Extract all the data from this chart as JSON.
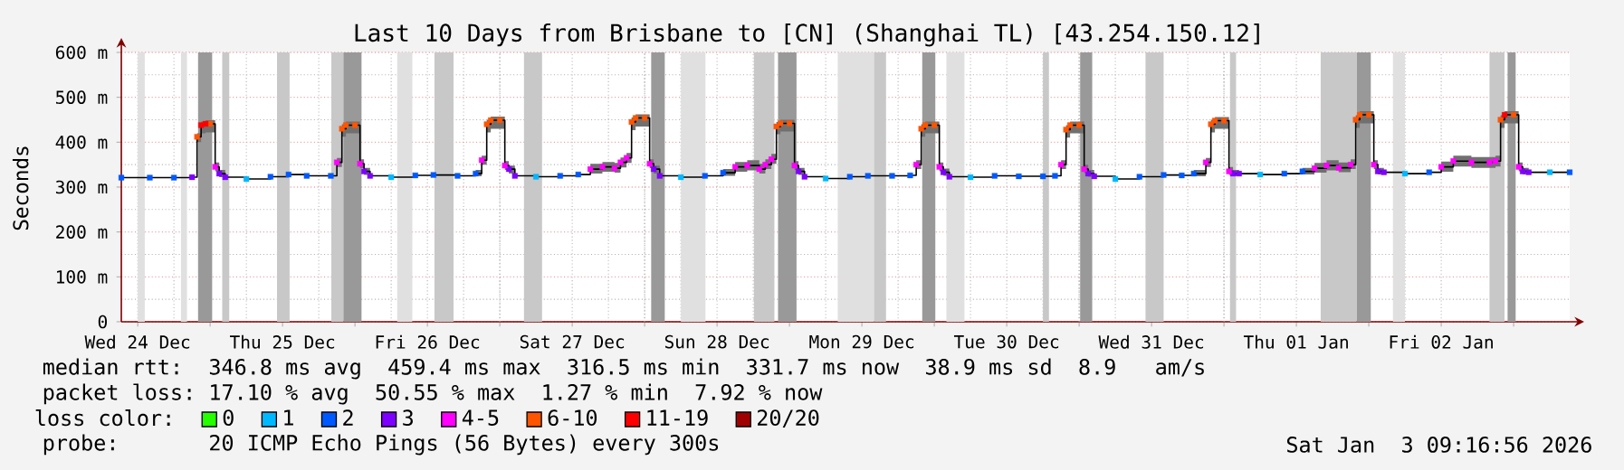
{
  "chart_data": {
    "type": "step",
    "title": "Last 10 Days from Brisbane to [CN] (Shanghai TL) [43.254.150.12]",
    "ylabel": "Seconds",
    "xlim": [
      "2025-12-24T09:17",
      "2026-01-03T09:17"
    ],
    "ylim": [
      0,
      600
    ],
    "xticks": [
      {
        "value": "2025-12-24T12:00",
        "label": "Wed 24 Dec"
      },
      {
        "value": "2025-12-25T00:00",
        "label": null
      },
      {
        "value": "2025-12-25T12:00",
        "label": "Thu 25 Dec"
      },
      {
        "value": "2025-12-26T00:00",
        "label": null
      },
      {
        "value": "2025-12-26T12:00",
        "label": "Fri 26 Dec"
      },
      {
        "value": "2025-12-27T00:00",
        "label": null
      },
      {
        "value": "2025-12-27T12:00",
        "label": "Sat 27 Dec"
      },
      {
        "value": "2025-12-28T00:00",
        "label": null
      },
      {
        "value": "2025-12-28T12:00",
        "label": "Sun 28 Dec"
      },
      {
        "value": "2025-12-29T00:00",
        "label": null
      },
      {
        "value": "2025-12-29T12:00",
        "label": "Mon 29 Dec"
      },
      {
        "value": "2025-12-30T00:00",
        "label": null
      },
      {
        "value": "2025-12-30T12:00",
        "label": "Tue 30 Dec"
      },
      {
        "value": "2025-12-31T00:00",
        "label": null
      },
      {
        "value": "2025-12-31T12:00",
        "label": "Wed 31 Dec"
      },
      {
        "value": "2026-01-01T00:00",
        "label": null
      },
      {
        "value": "2026-01-01T12:00",
        "label": "Thu 01 Jan"
      },
      {
        "value": "2026-01-02T00:00",
        "label": null
      },
      {
        "value": "2026-01-02T12:00",
        "label": "Fri 02 Jan"
      },
      {
        "value": "2026-01-03T00:00",
        "label": null
      }
    ],
    "yticks": [
      0,
      {
        "value": 100,
        "label": "100 m"
      },
      {
        "value": 200,
        "label": "200 m"
      },
      {
        "value": 300,
        "label": "300 m"
      },
      {
        "value": 400,
        "label": "400 m"
      },
      {
        "value": 500,
        "label": "500 m"
      },
      {
        "value": 600,
        "label": "600 m"
      }
    ],
    "grid": true,
    "legend": "bottom",
    "legend_title": "loss color:",
    "bands": [
      {
        "axis": "x",
        "from": "2025-12-24T12:00",
        "to": "2025-12-24T13:10",
        "color": "#e0e0e0"
      },
      {
        "axis": "x",
        "from": "2025-12-24T19:10",
        "to": "2025-12-24T20:10",
        "color": "#e0e0e0"
      },
      {
        "axis": "x",
        "from": "2025-12-24T22:00",
        "to": "2025-12-25T00:20",
        "color": "#999999"
      },
      {
        "axis": "x",
        "from": "2025-12-25T02:00",
        "to": "2025-12-25T03:10",
        "color": "#c8c8c8"
      },
      {
        "axis": "x",
        "from": "2025-12-25T11:05",
        "to": "2025-12-25T13:10",
        "color": "#c8c8c8"
      },
      {
        "axis": "x",
        "from": "2025-12-25T20:05",
        "to": "2025-12-25T22:05",
        "color": "#c8c8c8"
      },
      {
        "axis": "x",
        "from": "2025-12-25T22:05",
        "to": "2025-12-26T01:05",
        "color": "#999999"
      },
      {
        "axis": "x",
        "from": "2025-12-26T07:00",
        "to": "2025-12-26T09:30",
        "color": "#e0e0e0"
      },
      {
        "axis": "x",
        "from": "2025-12-26T13:10",
        "to": "2025-12-26T16:20",
        "color": "#c8c8c8"
      },
      {
        "axis": "x",
        "from": "2025-12-27T04:00",
        "to": "2025-12-27T07:00",
        "color": "#c8c8c8"
      },
      {
        "axis": "x",
        "from": "2025-12-28T01:05",
        "to": "2025-12-28T03:20",
        "color": "#999999"
      },
      {
        "axis": "x",
        "from": "2025-12-28T06:00",
        "to": "2025-12-28T10:05",
        "color": "#e0e0e0"
      },
      {
        "axis": "x",
        "from": "2025-12-28T18:05",
        "to": "2025-12-28T21:30",
        "color": "#c8c8c8"
      },
      {
        "axis": "x",
        "from": "2025-12-28T22:05",
        "to": "2025-12-29T01:10",
        "color": "#999999"
      },
      {
        "axis": "x",
        "from": "2025-12-29T08:00",
        "to": "2025-12-29T14:00",
        "color": "#e0e0e0"
      },
      {
        "axis": "x",
        "from": "2025-12-29T14:00",
        "to": "2025-12-29T16:00",
        "color": "#c8c8c8"
      },
      {
        "axis": "x",
        "from": "2025-12-29T22:00",
        "to": "2025-12-30T00:10",
        "color": "#999999"
      },
      {
        "axis": "x",
        "from": "2025-12-30T02:00",
        "to": "2025-12-30T05:00",
        "color": "#e0e0e0"
      },
      {
        "axis": "x",
        "from": "2025-12-30T18:00",
        "to": "2025-12-30T19:00",
        "color": "#c8c8c8"
      },
      {
        "axis": "x",
        "from": "2025-12-31T00:10",
        "to": "2025-12-31T02:10",
        "color": "#999999"
      },
      {
        "axis": "x",
        "from": "2025-12-31T11:00",
        "to": "2025-12-31T14:00",
        "color": "#c8c8c8"
      },
      {
        "axis": "x",
        "from": "2026-01-01T01:00",
        "to": "2026-01-01T02:00",
        "color": "#c8c8c8"
      },
      {
        "axis": "x",
        "from": "2026-01-01T16:00",
        "to": "2026-01-01T22:00",
        "color": "#c8c8c8"
      },
      {
        "axis": "x",
        "from": "2026-01-01T22:00",
        "to": "2026-01-02T00:20",
        "color": "#999999"
      },
      {
        "axis": "x",
        "from": "2026-01-02T04:00",
        "to": "2026-01-02T06:00",
        "color": "#e0e0e0"
      },
      {
        "axis": "x",
        "from": "2026-01-02T20:00",
        "to": "2026-01-02T22:30",
        "color": "#c8c8c8"
      },
      {
        "axis": "x",
        "from": "2026-01-02T23:00",
        "to": "2026-01-03T00:20",
        "color": "#999999"
      }
    ],
    "series": [
      {
        "color": "#000000",
        "x": [
          "2025-12-24T09:17",
          "2025-12-24T14:00",
          "2025-12-24T18:00",
          "2025-12-24T21:00",
          "2025-12-24T21:50",
          "2025-12-24T22:30",
          "2025-12-24T23:15",
          "2025-12-25T00:00",
          "2025-12-25T00:50",
          "2025-12-25T01:30",
          "2025-12-25T02:30",
          "2025-12-25T06:00",
          "2025-12-25T10:00",
          "2025-12-25T13:00",
          "2025-12-25T16:00",
          "2025-12-25T20:00",
          "2025-12-25T21:00",
          "2025-12-25T21:50",
          "2025-12-25T22:30",
          "2025-12-26T00:00",
          "2025-12-26T00:50",
          "2025-12-26T01:30",
          "2025-12-26T02:30",
          "2025-12-26T06:00",
          "2025-12-26T10:00",
          "2025-12-26T13:00",
          "2025-12-26T17:00",
          "2025-12-26T20:00",
          "2025-12-26T21:00",
          "2025-12-26T21:50",
          "2025-12-26T22:30",
          "2025-12-27T00:00",
          "2025-12-27T00:50",
          "2025-12-27T01:30",
          "2025-12-27T02:30",
          "2025-12-27T06:00",
          "2025-12-27T10:00",
          "2025-12-27T13:00",
          "2025-12-27T15:00",
          "2025-12-27T17:00",
          "2025-12-27T19:00",
          "2025-12-27T20:00",
          "2025-12-27T21:00",
          "2025-12-27T21:50",
          "2025-12-27T22:30",
          "2025-12-28T00:00",
          "2025-12-28T00:50",
          "2025-12-28T01:30",
          "2025-12-28T02:30",
          "2025-12-28T06:00",
          "2025-12-28T10:00",
          "2025-12-28T13:00",
          "2025-12-28T15:00",
          "2025-12-28T17:00",
          "2025-12-28T19:00",
          "2025-12-28T20:00",
          "2025-12-28T21:00",
          "2025-12-28T21:50",
          "2025-12-28T22:30",
          "2025-12-29T00:00",
          "2025-12-29T00:50",
          "2025-12-29T01:30",
          "2025-12-29T02:30",
          "2025-12-29T06:00",
          "2025-12-29T10:00",
          "2025-12-29T13:00",
          "2025-12-29T17:00",
          "2025-12-29T20:00",
          "2025-12-29T21:00",
          "2025-12-29T21:50",
          "2025-12-29T22:30",
          "2025-12-30T00:00",
          "2025-12-30T00:50",
          "2025-12-30T01:30",
          "2025-12-30T02:30",
          "2025-12-30T06:00",
          "2025-12-30T10:00",
          "2025-12-30T14:00",
          "2025-12-30T18:00",
          "2025-12-30T20:00",
          "2025-12-30T21:00",
          "2025-12-30T21:50",
          "2025-12-30T22:30",
          "2025-12-31T00:00",
          "2025-12-31T00:50",
          "2025-12-31T01:30",
          "2025-12-31T02:30",
          "2025-12-31T06:00",
          "2025-12-31T10:00",
          "2025-12-31T14:00",
          "2025-12-31T17:00",
          "2025-12-31T19:00",
          "2025-12-31T21:00",
          "2025-12-31T21:50",
          "2025-12-31T22:30",
          "2026-01-01T00:00",
          "2026-01-01T00:50",
          "2026-01-01T01:30",
          "2026-01-01T02:30",
          "2026-01-01T06:00",
          "2026-01-01T10:00",
          "2026-01-01T13:00",
          "2026-01-01T15:00",
          "2026-01-01T17:00",
          "2026-01-01T19:00",
          "2026-01-01T21:00",
          "2026-01-01T21:50",
          "2026-01-01T22:30",
          "2026-01-02T00:00",
          "2026-01-02T00:50",
          "2026-01-02T01:30",
          "2026-01-02T02:30",
          "2026-01-02T06:00",
          "2026-01-02T10:00",
          "2026-01-02T12:00",
          "2026-01-02T14:00",
          "2026-01-02T17:00",
          "2026-01-02T20:00",
          "2026-01-02T21:00",
          "2026-01-02T21:50",
          "2026-01-02T22:30",
          "2026-01-03T00:00",
          "2026-01-03T00:50",
          "2026-01-03T01:30",
          "2026-01-03T02:30",
          "2026-01-03T06:00",
          "2026-01-03T09:17"
        ],
        "values": [
          321,
          321,
          321,
          322,
          412,
          438,
          441,
          441,
          345,
          330,
          322,
          318,
          323,
          328,
          325,
          325,
          355,
          430,
          438,
          438,
          352,
          335,
          325,
          322,
          326,
          327,
          325,
          330,
          360,
          440,
          449,
          449,
          348,
          340,
          325,
          323,
          325,
          328,
          340,
          345,
          342,
          355,
          365,
          445,
          454,
          454,
          352,
          340,
          325,
          322,
          325,
          332,
          345,
          348,
          340,
          350,
          362,
          435,
          442,
          442,
          348,
          335,
          323,
          319,
          323,
          325,
          325,
          326,
          350,
          430,
          438,
          438,
          345,
          333,
          323,
          322,
          325,
          324,
          324,
          325,
          350,
          428,
          438,
          438,
          340,
          330,
          324,
          318,
          323,
          327,
          326,
          330,
          355,
          440,
          448,
          448,
          335,
          330,
          330,
          328,
          330,
          335,
          342,
          348,
          343,
          350,
          450,
          461,
          461,
          350,
          335,
          333,
          330,
          333,
          345,
          358,
          355,
          355,
          358,
          450,
          461,
          461,
          345,
          335,
          333,
          333,
          333
        ],
        "lower": [
          null,
          null,
          null,
          null,
          400,
          420,
          422,
          422,
          335,
          322,
          null,
          null,
          null,
          null,
          null,
          null,
          345,
          412,
          420,
          420,
          342,
          327,
          null,
          null,
          null,
          null,
          null,
          324,
          350,
          422,
          430,
          430,
          338,
          330,
          null,
          null,
          null,
          null,
          330,
          334,
          332,
          344,
          354,
          427,
          435,
          435,
          342,
          330,
          null,
          null,
          null,
          325,
          334,
          337,
          330,
          340,
          352,
          418,
          424,
          424,
          338,
          327,
          null,
          null,
          null,
          null,
          null,
          null,
          340,
          412,
          420,
          420,
          335,
          325,
          null,
          null,
          null,
          null,
          null,
          null,
          340,
          410,
          420,
          420,
          331,
          323,
          null,
          null,
          null,
          null,
          null,
          324,
          345,
          422,
          430,
          430,
          327,
          324,
          null,
          null,
          null,
          328,
          332,
          337,
          333,
          340,
          432,
          442,
          442,
          340,
          328,
          null,
          null,
          null,
          334,
          346,
          343,
          343,
          346,
          432,
          442,
          442,
          335,
          328,
          null,
          null,
          null
        ],
        "upper": [
          null,
          null,
          null,
          null,
          420,
          446,
          449,
          449,
          355,
          338,
          null,
          null,
          null,
          null,
          null,
          null,
          365,
          440,
          446,
          446,
          362,
          343,
          null,
          null,
          null,
          null,
          null,
          338,
          370,
          450,
          457,
          457,
          358,
          348,
          null,
          null,
          null,
          null,
          352,
          356,
          354,
          366,
          376,
          455,
          462,
          462,
          362,
          348,
          null,
          null,
          null,
          340,
          356,
          360,
          352,
          362,
          374,
          445,
          450,
          450,
          358,
          343,
          null,
          null,
          null,
          null,
          null,
          null,
          360,
          440,
          446,
          446,
          355,
          341,
          null,
          null,
          null,
          null,
          null,
          null,
          360,
          438,
          446,
          446,
          350,
          338,
          null,
          null,
          null,
          null,
          null,
          338,
          365,
          450,
          456,
          456,
          345,
          338,
          null,
          null,
          null,
          343,
          354,
          360,
          355,
          362,
          460,
          469,
          469,
          360,
          343,
          null,
          null,
          null,
          357,
          370,
          367,
          367,
          370,
          460,
          469,
          469,
          355,
          343,
          null,
          null,
          null
        ]
      },
      {
        "type": "scatter",
        "name": "0",
        "color": "#26ff00"
      },
      {
        "type": "scatter",
        "name": "1",
        "color": "#00b8ff",
        "marker": "square",
        "x": [
          "2025-12-25T06:00",
          "2025-12-26T06:00",
          "2025-12-27T06:00",
          "2025-12-28T06:00",
          "2025-12-29T06:00",
          "2025-12-30T06:00",
          "2025-12-31T06:00",
          "2026-01-01T06:00",
          "2026-01-02T06:00",
          "2026-01-03T06:00"
        ],
        "values": [
          318,
          322,
          323,
          322,
          319,
          322,
          318,
          328,
          330,
          333
        ]
      },
      {
        "type": "scatter",
        "name": "2",
        "color": "#0059ff",
        "marker": "square",
        "x": [
          "2025-12-24T09:17",
          "2025-12-24T14:00",
          "2025-12-24T18:00",
          "2025-12-25T10:00",
          "2025-12-25T13:00",
          "2025-12-25T16:00",
          "2025-12-25T20:00",
          "2025-12-26T10:00",
          "2025-12-26T13:00",
          "2025-12-26T17:00",
          "2025-12-26T20:00",
          "2025-12-27T10:00",
          "2025-12-27T13:00",
          "2025-12-28T10:00",
          "2025-12-28T13:00",
          "2025-12-29T10:00",
          "2025-12-29T13:00",
          "2025-12-29T17:00",
          "2025-12-29T20:00",
          "2025-12-30T10:00",
          "2025-12-30T14:00",
          "2025-12-30T18:00",
          "2025-12-30T20:00",
          "2025-12-31T10:00",
          "2025-12-31T14:00",
          "2025-12-31T17:00",
          "2025-12-31T19:00",
          "2026-01-01T10:00",
          "2026-01-01T13:00",
          "2026-01-02T10:00",
          "2026-01-03T09:17"
        ],
        "values": [
          321,
          321,
          321,
          323,
          328,
          325,
          325,
          326,
          327,
          325,
          330,
          325,
          328,
          325,
          332,
          323,
          325,
          325,
          326,
          325,
          324,
          324,
          325,
          323,
          327,
          326,
          330,
          330,
          335,
          333,
          333
        ]
      },
      {
        "type": "scatter",
        "name": "3",
        "color": "#7e00ff",
        "marker": "square",
        "x": [
          "2025-12-24T21:00",
          "2025-12-25T01:30",
          "2025-12-25T02:30",
          "2025-12-26T01:30",
          "2025-12-26T02:30",
          "2025-12-27T01:30",
          "2025-12-27T02:30",
          "2025-12-28T01:30",
          "2025-12-28T02:30",
          "2025-12-29T01:30",
          "2025-12-29T02:30",
          "2025-12-30T01:30",
          "2025-12-30T02:30",
          "2025-12-31T01:30",
          "2025-12-31T02:30",
          "2026-01-01T01:30",
          "2026-01-01T02:30",
          "2026-01-02T01:30",
          "2026-01-02T02:30",
          "2026-01-03T01:30",
          "2026-01-03T02:30"
        ],
        "values": [
          322,
          330,
          322,
          335,
          325,
          340,
          325,
          340,
          325,
          335,
          323,
          333,
          323,
          330,
          324,
          330,
          330,
          335,
          333,
          335,
          333
        ]
      },
      {
        "type": "scatter",
        "name": "4-5",
        "color": "#ff00fe",
        "marker": "square",
        "x": [
          "2025-12-25T00:50",
          "2025-12-25T21:00",
          "2025-12-26T00:50",
          "2025-12-26T21:00",
          "2025-12-27T00:50",
          "2025-12-27T15:00",
          "2025-12-27T17:00",
          "2025-12-27T19:00",
          "2025-12-27T20:00",
          "2025-12-27T21:00",
          "2025-12-28T00:50",
          "2025-12-28T15:00",
          "2025-12-28T17:00",
          "2025-12-28T19:00",
          "2025-12-28T20:00",
          "2025-12-28T21:00",
          "2025-12-29T00:50",
          "2025-12-29T21:00",
          "2025-12-30T00:50",
          "2025-12-30T21:00",
          "2025-12-31T00:50",
          "2025-12-31T21:00",
          "2026-01-01T00:50",
          "2026-01-01T15:00",
          "2026-01-01T17:00",
          "2026-01-01T19:00",
          "2026-01-01T21:00",
          "2026-01-02T00:50",
          "2026-01-02T12:00",
          "2026-01-02T14:00",
          "2026-01-02T17:00",
          "2026-01-02T20:00",
          "2026-01-02T21:00",
          "2026-01-03T00:50"
        ],
        "values": [
          345,
          355,
          352,
          360,
          348,
          340,
          345,
          342,
          355,
          365,
          352,
          345,
          348,
          340,
          350,
          362,
          348,
          350,
          345,
          350,
          340,
          355,
          335,
          342,
          348,
          343,
          350,
          350,
          345,
          358,
          355,
          355,
          358,
          345
        ]
      },
      {
        "type": "scatter",
        "name": "6-10",
        "color": "#ff5500",
        "marker": "square",
        "x": [
          "2025-12-24T21:50",
          "2025-12-25T00:00",
          "2025-12-25T21:50",
          "2025-12-25T22:30",
          "2025-12-26T00:00",
          "2025-12-26T21:50",
          "2025-12-26T22:30",
          "2025-12-27T00:00",
          "2025-12-27T21:50",
          "2025-12-27T22:30",
          "2025-12-28T00:00",
          "2025-12-28T21:50",
          "2025-12-28T22:30",
          "2025-12-29T00:00",
          "2025-12-29T21:50",
          "2025-12-29T22:30",
          "2025-12-30T00:00",
          "2025-12-30T21:50",
          "2025-12-30T22:30",
          "2025-12-31T00:00",
          "2025-12-31T21:50",
          "2025-12-31T22:30",
          "2026-01-01T00:00",
          "2026-01-01T21:50",
          "2026-01-01T22:30",
          "2026-01-02T00:00",
          "2026-01-02T21:50",
          "2026-01-03T00:00"
        ],
        "values": [
          412,
          441,
          430,
          438,
          438,
          440,
          449,
          449,
          445,
          454,
          454,
          435,
          442,
          442,
          430,
          438,
          438,
          428,
          438,
          438,
          440,
          448,
          448,
          450,
          461,
          461,
          450,
          461
        ]
      },
      {
        "type": "scatter",
        "name": "11-19",
        "color": "#ff0000",
        "marker": "square",
        "x": [
          "2025-12-24T22:30",
          "2025-12-24T23:15",
          "2026-01-02T22:30"
        ],
        "values": [
          438,
          441,
          461
        ]
      },
      {
        "type": "scatter",
        "name": "20/20",
        "color": "#a10000"
      }
    ],
    "annotations": [
      "median rtt:  346.8 ms avg  459.4 ms max  316.5 ms min  331.7 ms now  38.9 ms sd  8.9   am/s",
      "packet loss: 17.10 % avg  50.55 % max  1.27 % min  7.92 % now",
      "probe:       20 ICMP Echo Pings (56 Bytes) every 300s",
      "Sat Jan  3 09:16:56 2026"
    ]
  }
}
